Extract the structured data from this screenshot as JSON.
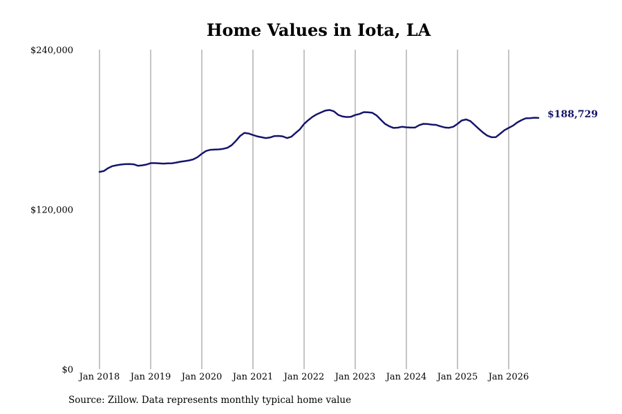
{
  "chart_data": {
    "type": "line",
    "title": "Home Values in Iota, LA",
    "xlabel": "",
    "ylabel": "",
    "ylim": [
      0,
      240000
    ],
    "y_ticks": [
      {
        "value": 0,
        "label": "$0"
      },
      {
        "value": 120000,
        "label": "$120,000"
      },
      {
        "value": 240000,
        "label": "$240,000"
      }
    ],
    "x_ticks": [
      {
        "value": 2018,
        "label": "Jan 2018"
      },
      {
        "value": 2019,
        "label": "Jan 2019"
      },
      {
        "value": 2020,
        "label": "Jan 2020"
      },
      {
        "value": 2021,
        "label": "Jan 2021"
      },
      {
        "value": 2022,
        "label": "Jan 2022"
      },
      {
        "value": 2023,
        "label": "Jan 2023"
      },
      {
        "value": 2024,
        "label": "Jan 2024"
      },
      {
        "value": 2025,
        "label": "Jan 2025"
      },
      {
        "value": 2026,
        "label": "Jan 2026"
      }
    ],
    "xlim": [
      2018,
      2027
    ],
    "grid": "vertical",
    "line_color": "#14146b",
    "end_label": "$188,729",
    "series": [
      {
        "name": "",
        "x": [
          2018.0,
          2018.083,
          2018.167,
          2018.25,
          2018.333,
          2018.417,
          2018.5,
          2018.583,
          2018.667,
          2018.75,
          2018.833,
          2018.917,
          2019.0,
          2019.083,
          2019.167,
          2019.25,
          2019.333,
          2019.417,
          2019.5,
          2019.583,
          2019.667,
          2019.75,
          2019.833,
          2019.917,
          2020.0,
          2020.083,
          2020.167,
          2020.25,
          2020.333,
          2020.417,
          2020.5,
          2020.583,
          2020.667,
          2020.75,
          2020.833,
          2020.917,
          2021.0,
          2021.083,
          2021.167,
          2021.25,
          2021.333,
          2021.417,
          2021.5,
          2021.583,
          2021.667,
          2021.75,
          2021.833,
          2021.917,
          2022.0,
          2022.083,
          2022.167,
          2022.25,
          2022.333,
          2022.417,
          2022.5,
          2022.583,
          2022.667,
          2022.75,
          2022.833,
          2022.917,
          2023.0,
          2023.083,
          2023.167,
          2023.25,
          2023.333,
          2023.417,
          2023.5,
          2023.583,
          2023.667,
          2023.75,
          2023.833,
          2023.917,
          2024.0,
          2024.083,
          2024.167,
          2024.25,
          2024.333,
          2024.417,
          2024.5,
          2024.583,
          2024.667,
          2024.75,
          2024.833,
          2024.917,
          2025.0,
          2025.083,
          2025.167,
          2025.25,
          2025.333,
          2025.417,
          2025.5,
          2025.583,
          2025.667,
          2025.75,
          2025.833,
          2025.917,
          2026.0,
          2026.083,
          2026.167,
          2026.25,
          2026.333,
          2026.417,
          2026.5,
          2026.583
        ],
        "values": [
          148200,
          148800,
          151000,
          152500,
          153200,
          153700,
          154000,
          154100,
          153900,
          152800,
          153100,
          153700,
          154800,
          154800,
          154600,
          154400,
          154600,
          154700,
          155200,
          155800,
          156300,
          156800,
          157600,
          159300,
          161800,
          163900,
          164800,
          165000,
          165100,
          165500,
          166300,
          168200,
          171500,
          175200,
          177500,
          177000,
          175900,
          174900,
          174200,
          173600,
          174000,
          175100,
          175200,
          174900,
          173600,
          174600,
          177400,
          180200,
          184200,
          187100,
          189600,
          191500,
          192900,
          194300,
          194700,
          193700,
          191000,
          189800,
          189400,
          189600,
          190900,
          191700,
          193100,
          193000,
          192600,
          190600,
          187400,
          184300,
          182400,
          181200,
          181400,
          182100,
          181700,
          181500,
          181500,
          183300,
          184300,
          184100,
          183700,
          183500,
          182400,
          181600,
          181300,
          182100,
          184300,
          186800,
          187600,
          186400,
          183500,
          180500,
          177700,
          175400,
          174200,
          174300,
          176800,
          179500,
          181200,
          182900,
          185300,
          187100,
          188400,
          188600,
          188900,
          188729
        ]
      }
    ]
  },
  "footer": {
    "source": "Source: Zillow. Data represents monthly typical home value"
  }
}
